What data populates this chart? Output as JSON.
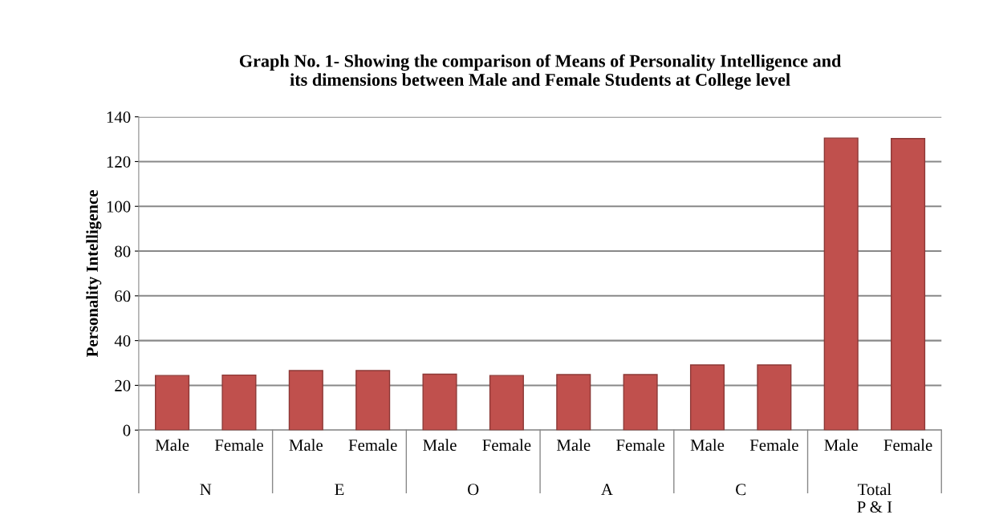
{
  "chart_data": {
    "type": "bar",
    "title": "Graph No. 1- Showing the comparison of Means of Personality Intelligence and\nits dimensions between Male and Female Students at College level",
    "ylabel": "Personality Intelligence",
    "categories": [
      "Male",
      "Female",
      "Male",
      "Female",
      "Male",
      "Female",
      "Male",
      "Female",
      "Male",
      "Female",
      "Male",
      "Female"
    ],
    "annotations": [
      "N",
      "E",
      "O",
      "A",
      "C",
      "Total\nP & I"
    ],
    "values": [
      24.4,
      24.6,
      26.6,
      26.6,
      25.0,
      24.4,
      24.8,
      24.8,
      29.1,
      29.1,
      130.5,
      130.3
    ],
    "color": "#c0504d",
    "ylim": [
      0,
      140
    ],
    "yticks": [
      0,
      20,
      40,
      60,
      80,
      100,
      120,
      140
    ],
    "grid": "y",
    "legend": false
  }
}
